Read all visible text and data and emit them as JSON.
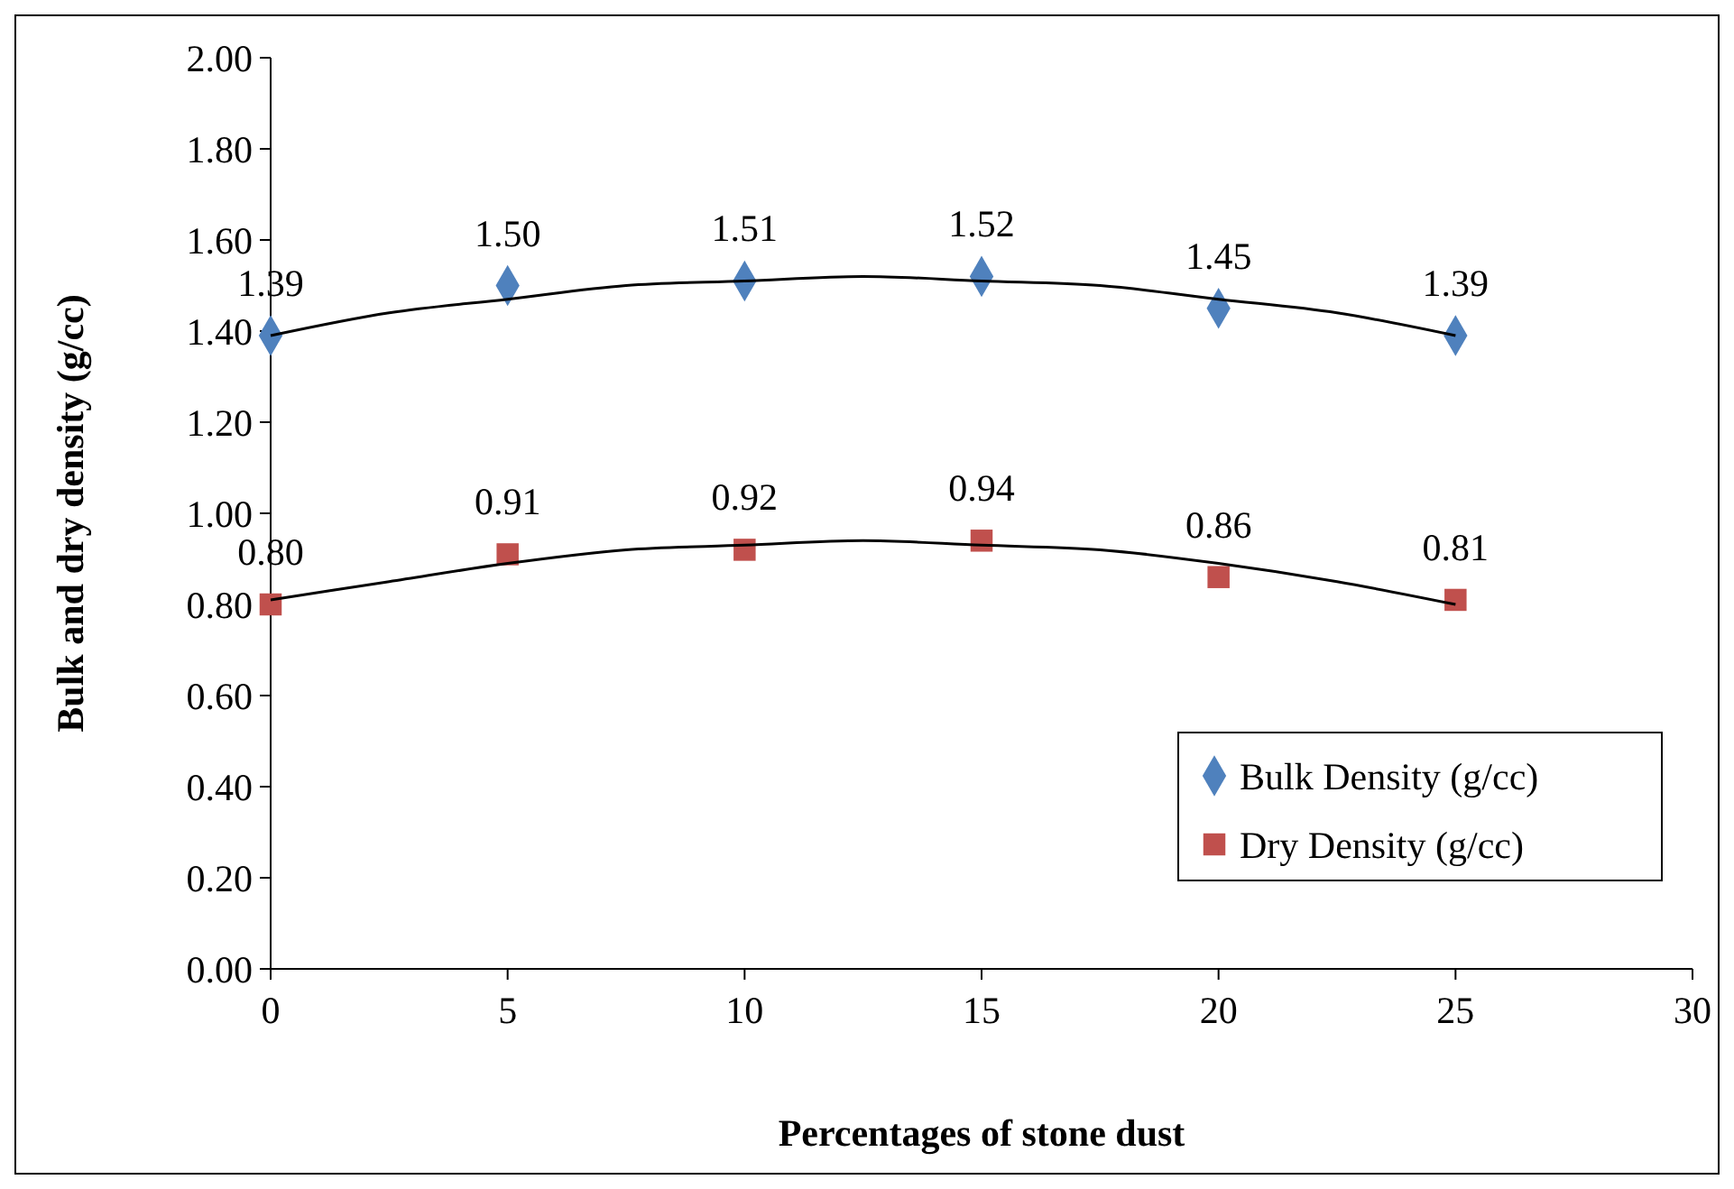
{
  "chart_data": {
    "type": "scatter",
    "xlabel": "Percentages of stone dust",
    "ylabel": "Bulk and dry density (g/cc)",
    "xlim": [
      0,
      30
    ],
    "xticks": [
      0,
      5,
      10,
      15,
      20,
      25,
      30
    ],
    "ylim": [
      0,
      2
    ],
    "yticks": [
      {
        "value": 0,
        "label": "0.00"
      },
      {
        "value": 0.2,
        "label": "0.20"
      },
      {
        "value": 0.4,
        "label": "0.40"
      },
      {
        "value": 0.6,
        "label": "0.60"
      },
      {
        "value": 0.8,
        "label": "0.80"
      },
      {
        "value": 1,
        "label": "1.00"
      },
      {
        "value": 1.2,
        "label": "1.20"
      },
      {
        "value": 1.4,
        "label": "1.40"
      },
      {
        "value": 1.6,
        "label": "1.60"
      },
      {
        "value": 1.8,
        "label": "1.80"
      },
      {
        "value": 2,
        "label": "2.00"
      }
    ],
    "x": [
      0,
      5,
      10,
      15,
      20,
      25
    ],
    "grid": false,
    "legend": "right",
    "series": [
      {
        "name": "Bulk Density (g/cc)",
        "marker": "diamond",
        "color": "#4f81bd",
        "values": [
          1.39,
          1.5,
          1.51,
          1.52,
          1.45,
          1.39
        ],
        "value_labels": [
          "1.39",
          "1.50",
          "1.51",
          "1.52",
          "1.45",
          "1.39"
        ]
      },
      {
        "name": "Dry Density (g/cc)",
        "marker": "square",
        "color": "#c0504d",
        "values": [
          0.8,
          0.91,
          0.92,
          0.94,
          0.86,
          0.81
        ],
        "value_labels": [
          "0.80",
          "0.91",
          "0.92",
          "0.94",
          "0.86",
          "0.81"
        ]
      },
      {
        "type": "line",
        "color": "#000000",
        "marker": "none",
        "line_style": "solid",
        "x": [
          0,
          2.5,
          5,
          7.5,
          10,
          12.5,
          15,
          17.5,
          20,
          22.5,
          25
        ],
        "values": [
          1.39,
          1.44,
          1.47,
          1.5,
          1.51,
          1.52,
          1.51,
          1.5,
          1.47,
          1.44,
          1.39
        ]
      },
      {
        "type": "line",
        "color": "#000000",
        "marker": "none",
        "line_style": "solid",
        "x": [
          0,
          2.5,
          5,
          7.5,
          10,
          12.5,
          15,
          17.5,
          20,
          22.5,
          25
        ],
        "values": [
          0.81,
          0.85,
          0.89,
          0.92,
          0.93,
          0.94,
          0.93,
          0.92,
          0.89,
          0.85,
          0.8
        ]
      }
    ]
  }
}
